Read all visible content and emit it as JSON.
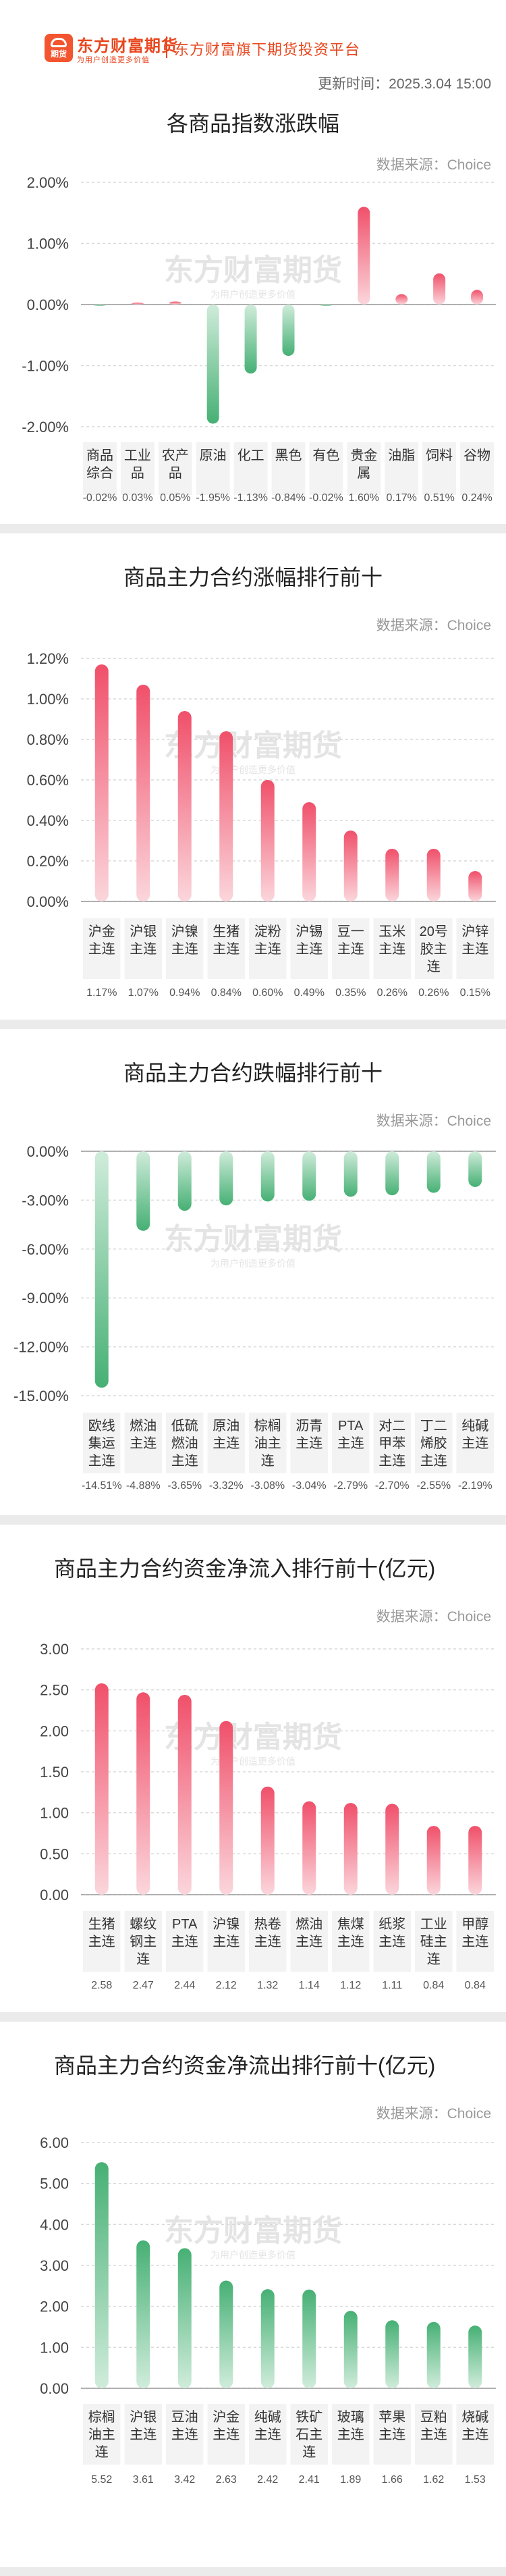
{
  "header": {
    "logo_text": "期货",
    "brand_name": "东方财富期货",
    "brand_slogan": "为用户创造更多价值",
    "platform": "东方财富旗下期货投资平台",
    "update_time": "更新时间：2025.3.04 15:00"
  },
  "colors": {
    "up": "#f0506a",
    "down": "#46b074",
    "grid": "#d9d9d9",
    "cat_bg": "#f3f3f3"
  },
  "watermark": {
    "name": "东方财富期货",
    "slogan": "为用户创造更多价值"
  },
  "chart_data": [
    {
      "type": "bar",
      "title": "各商品指数涨跌幅",
      "source": "数据来源：Choice",
      "y_ticks": [
        "2.00%",
        "1.00%",
        "0.00%",
        "-1.00%",
        "-2.00%"
      ],
      "ylim": [
        -2.0,
        2.0
      ],
      "categories": [
        "商品综合",
        "工业品",
        "农产品",
        "原油",
        "化工",
        "黑色",
        "有色",
        "贵金属",
        "油脂",
        "饲料",
        "谷物"
      ],
      "values": [
        -0.02,
        0.03,
        0.05,
        -1.95,
        -1.13,
        -0.84,
        -0.02,
        1.6,
        0.17,
        0.51,
        0.24
      ],
      "value_labels": [
        "-0.02%",
        "0.03%",
        "0.05%",
        "-1.95%",
        "-1.13%",
        "-0.84%",
        "-0.02%",
        "1.60%",
        "0.17%",
        "0.51%",
        "0.24%"
      ]
    },
    {
      "type": "bar",
      "title": "商品主力合约涨幅排行前十",
      "source": "数据来源：Choice",
      "y_ticks": [
        "1.20%",
        "1.00%",
        "0.80%",
        "0.60%",
        "0.40%",
        "0.20%",
        "0.00%"
      ],
      "ylim": [
        0,
        1.2
      ],
      "categories": [
        "沪金主连",
        "沪银主连",
        "沪镍主连",
        "生猪主连",
        "淀粉主连",
        "沪锡主连",
        "豆一主连",
        "玉米主连",
        "20号胶主连",
        "沪锌主连"
      ],
      "values": [
        1.17,
        1.07,
        0.94,
        0.84,
        0.6,
        0.49,
        0.35,
        0.26,
        0.26,
        0.15
      ],
      "value_labels": [
        "1.17%",
        "1.07%",
        "0.94%",
        "0.84%",
        "0.60%",
        "0.49%",
        "0.35%",
        "0.26%",
        "0.26%",
        "0.15%"
      ]
    },
    {
      "type": "bar",
      "title": "商品主力合约跌幅排行前十",
      "source": "数据来源：Choice",
      "y_ticks": [
        "0.00%",
        "-3.00%",
        "-6.00%",
        "-9.00%",
        "-12.00%",
        "-15.00%"
      ],
      "ylim": [
        -15,
        0
      ],
      "categories": [
        "欧线集运主连",
        "燃油主连",
        "低硫燃油主连",
        "原油主连",
        "棕榈油主连",
        "沥青主连",
        "PTA主连",
        "对二甲苯主连",
        "丁二烯胶主连",
        "纯碱主连"
      ],
      "values": [
        -14.51,
        -4.88,
        -3.65,
        -3.32,
        -3.08,
        -3.04,
        -2.79,
        -2.7,
        -2.55,
        -2.19
      ],
      "value_labels": [
        "-14.51%",
        "-4.88%",
        "-3.65%",
        "-3.32%",
        "-3.08%",
        "-3.04%",
        "-2.79%",
        "-2.70%",
        "-2.55%",
        "-2.19%"
      ]
    },
    {
      "type": "bar",
      "title": "商品主力合约资金净流入排行前十(亿元)",
      "source": "数据来源：Choice",
      "y_ticks": [
        "3.00",
        "2.50",
        "2.00",
        "1.50",
        "1.00",
        "0.50",
        "0.00"
      ],
      "ylim": [
        0,
        3.0
      ],
      "categories": [
        "生猪主连",
        "螺纹钢主连",
        "PTA主连",
        "沪镍主连",
        "热卷主连",
        "燃油主连",
        "焦煤主连",
        "纸浆主连",
        "工业硅主连",
        "甲醇主连"
      ],
      "values": [
        2.58,
        2.47,
        2.44,
        2.12,
        1.32,
        1.14,
        1.12,
        1.11,
        0.84,
        0.84
      ],
      "value_labels": [
        "2.58",
        "2.47",
        "2.44",
        "2.12",
        "1.32",
        "1.14",
        "1.12",
        "1.11",
        "0.84",
        "0.84"
      ]
    },
    {
      "type": "bar",
      "title": "商品主力合约资金净流出排行前十(亿元)",
      "source": "数据来源：Choice",
      "y_ticks": [
        "6.00",
        "5.00",
        "4.00",
        "3.00",
        "2.00",
        "1.00",
        "0.00"
      ],
      "ylim": [
        0,
        6.0
      ],
      "categories": [
        "棕榈油主连",
        "沪银主连",
        "豆油主连",
        "沪金主连",
        "纯碱主连",
        "铁矿石主连",
        "玻璃主连",
        "苹果主连",
        "豆粕主连",
        "烧碱主连"
      ],
      "values": [
        5.52,
        3.61,
        3.42,
        2.63,
        2.42,
        2.41,
        1.89,
        1.66,
        1.62,
        1.53
      ],
      "value_labels": [
        "5.52",
        "3.61",
        "3.42",
        "2.63",
        "2.42",
        "2.41",
        "1.89",
        "1.66",
        "1.62",
        "1.53"
      ]
    }
  ]
}
